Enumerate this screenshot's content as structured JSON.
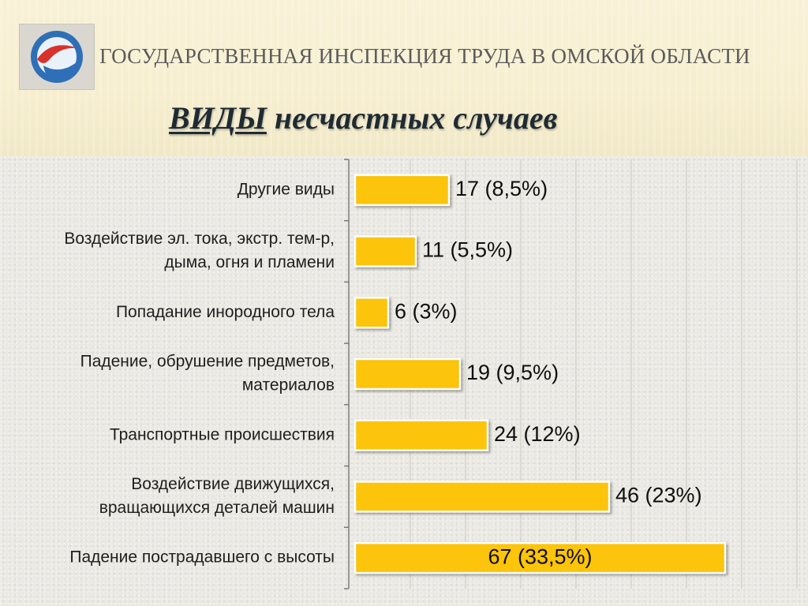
{
  "header": {
    "org_title": "ГОСУДАРСТВЕННАЯ ИНСПЕКЦИЯ ТРУДА В ОМСКОЙ ОБЛАСТИ",
    "title_first": "ВИДЫ",
    "title_rest": "несчастных случаев",
    "logo_icon": "agency-emblem-icon"
  },
  "colors": {
    "bar_fill": "#fcc40a",
    "bar_stroke": "#ffffff",
    "grid": "#c9c6bd",
    "axis": "#7a7a7a",
    "logo_blue": "#2e6fb7",
    "logo_red": "#d8322c"
  },
  "chart_data": {
    "type": "bar",
    "orientation": "horizontal",
    "categories": [
      [
        "Другие виды"
      ],
      [
        "Воздействие эл. тока, экстр. тем-р,",
        "дыма, огня и пламени"
      ],
      [
        "Попадание инородного тела"
      ],
      [
        "Падение, обрушение предметов,",
        "материалов"
      ],
      [
        "Транспортные происшествия"
      ],
      [
        "Воздействие движущихся,",
        "вращающихся деталей машин"
      ],
      [
        "Падение пострадавшего с высоты"
      ]
    ],
    "values": [
      17,
      11,
      6,
      19,
      24,
      46,
      67
    ],
    "data_labels": [
      "17 (8,5%)",
      "11 (5,5%)",
      "6 (3%)",
      "19 (9,5%)",
      "24 (12%)",
      "46 (23%)",
      "67 (33,5%)"
    ],
    "xlim": [
      0,
      80
    ],
    "grid": true,
    "legend": "none",
    "title": "",
    "xlabel": "",
    "ylabel": ""
  }
}
